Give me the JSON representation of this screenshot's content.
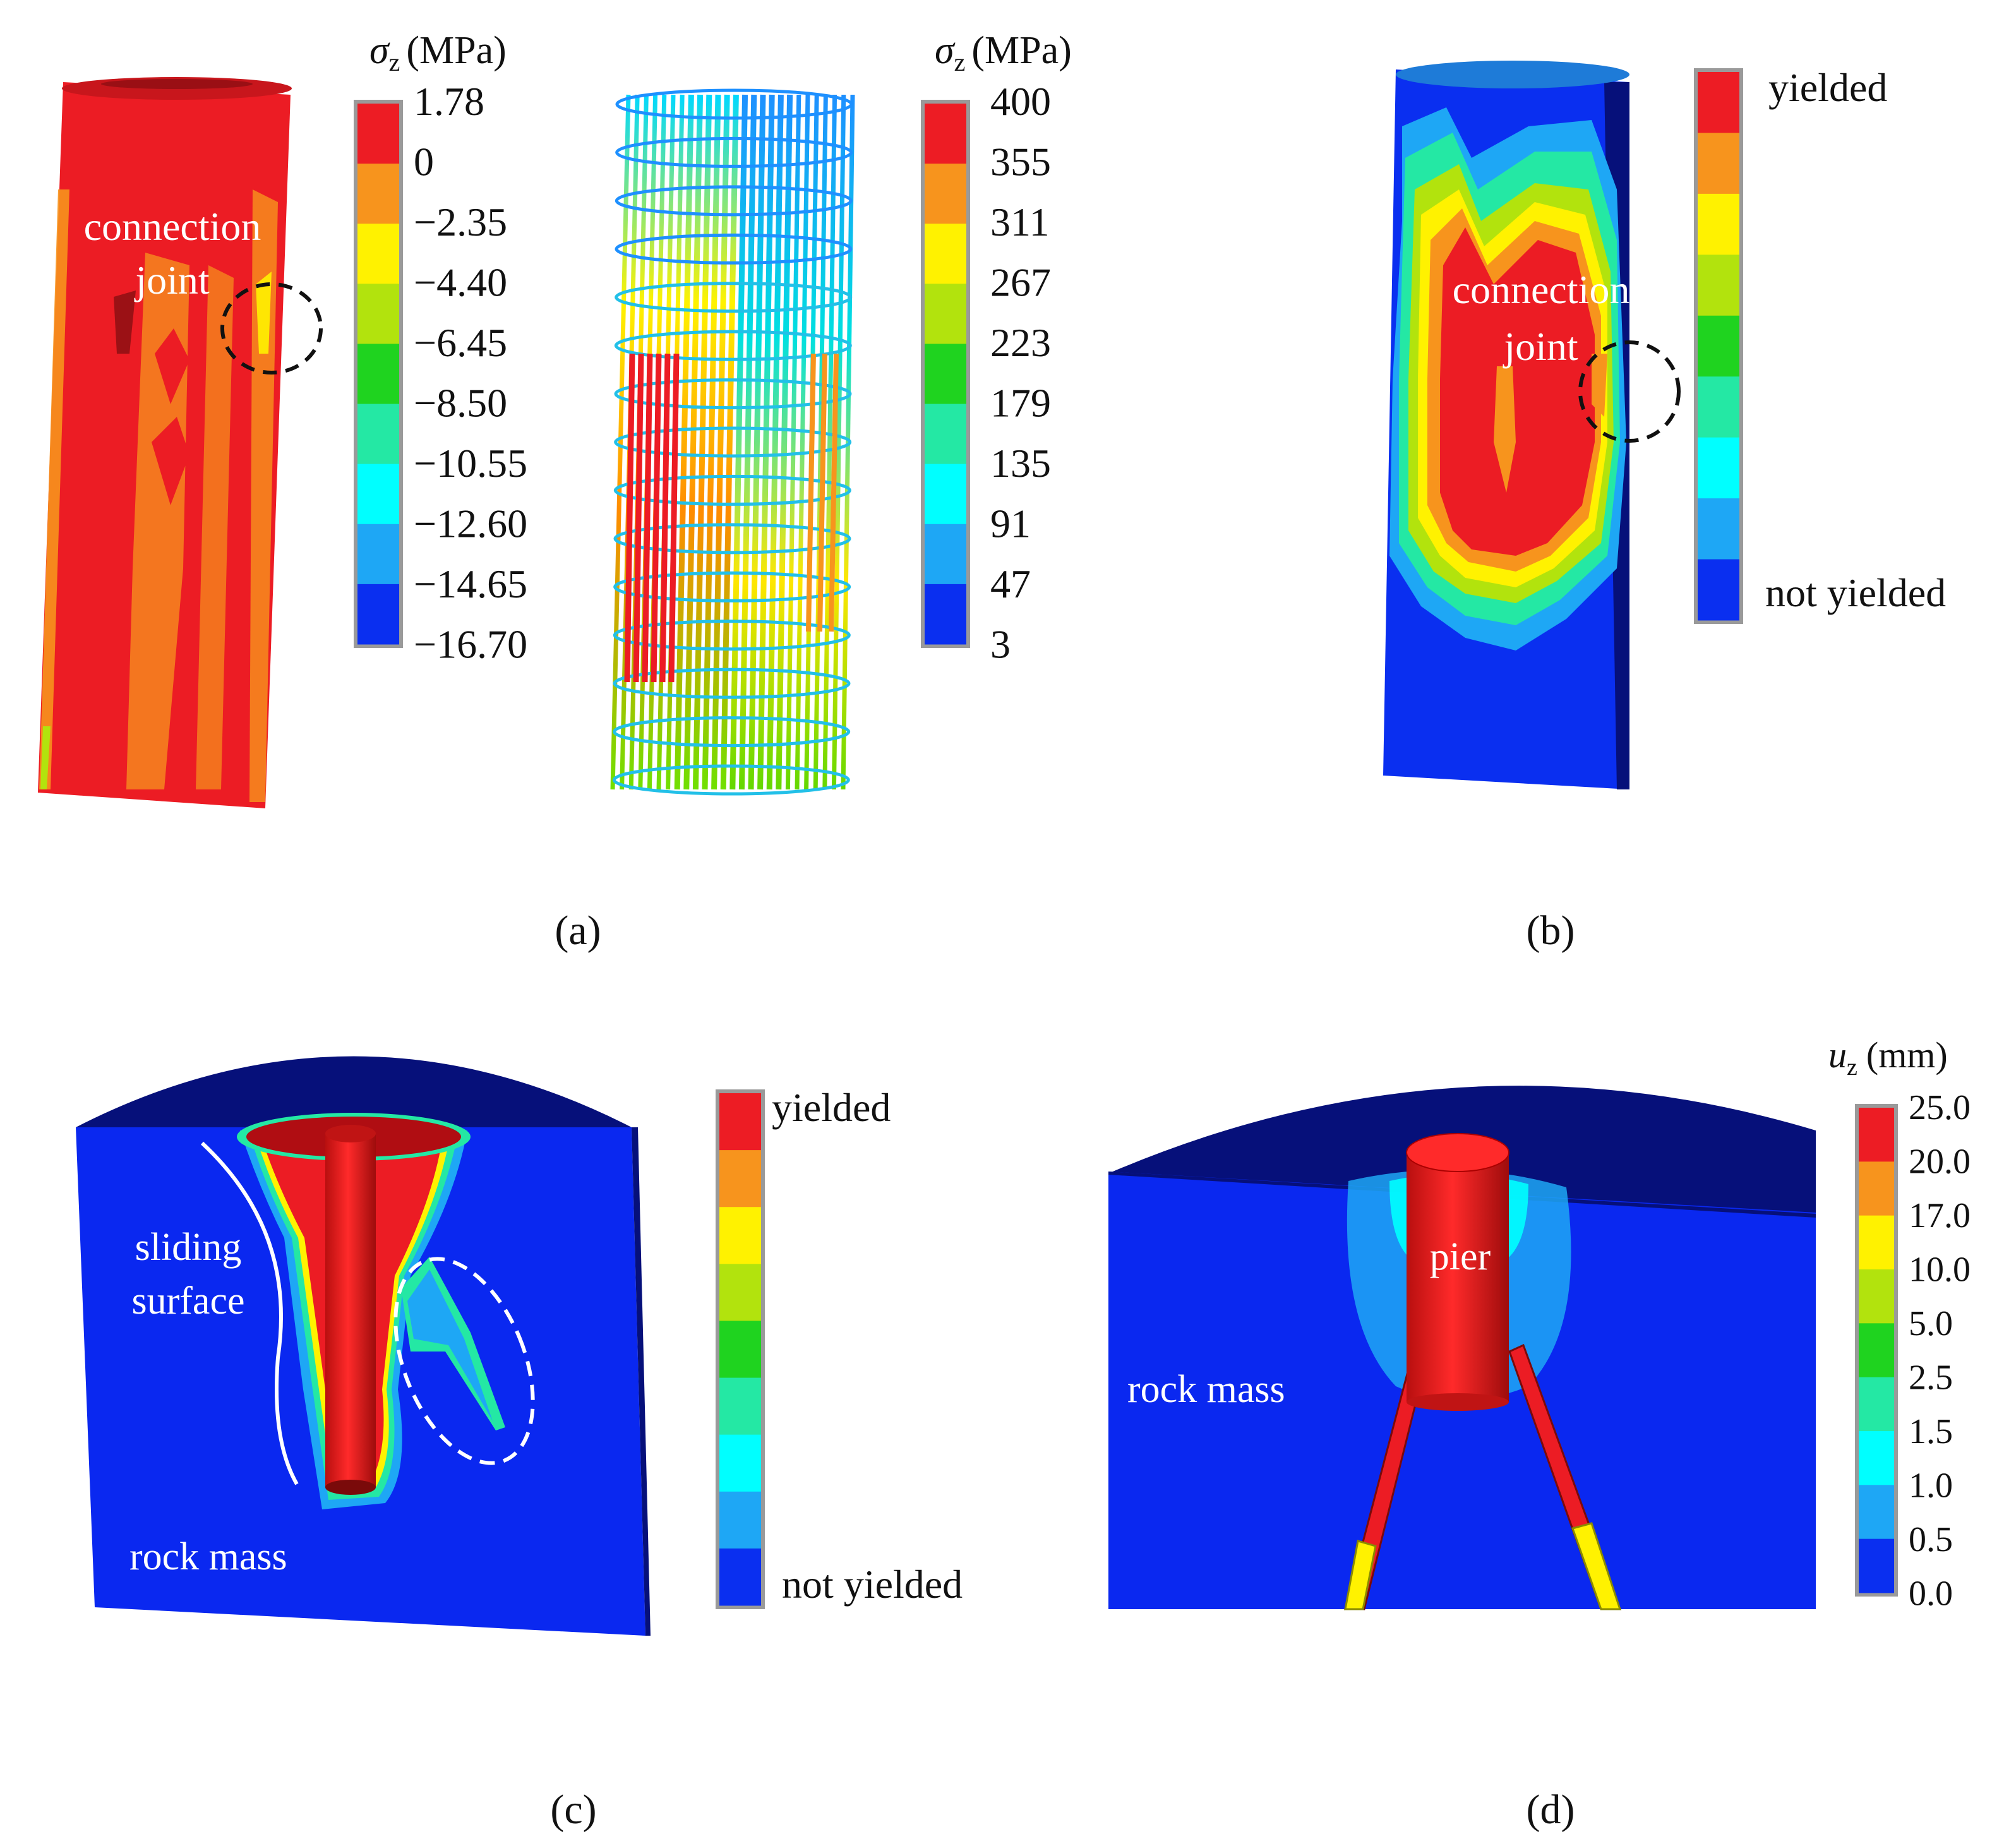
{
  "panels": {
    "a": {
      "caption": "(a)",
      "concrete": {
        "annotation_line1": "connection",
        "annotation_line2": "joint",
        "legend": {
          "symbol": "σ",
          "subscript": "z",
          "unit": "(MPa)",
          "ticks": [
            "1.78",
            "0",
            "−2.35",
            "−4.40",
            "−6.45",
            "−8.50",
            "−10.55",
            "−12.60",
            "−14.65",
            "−16.70"
          ]
        }
      },
      "steel": {
        "legend": {
          "symbol": "σ",
          "subscript": "z",
          "unit": "(MPa)",
          "ticks": [
            "400",
            "355",
            "311",
            "267",
            "223",
            "179",
            "135",
            "91",
            "47",
            "3"
          ]
        }
      }
    },
    "b": {
      "caption": "(b)",
      "annotation_line1": "connection",
      "annotation_line2": "joint",
      "legend": {
        "top": "yielded",
        "bottom": "not yielded"
      }
    },
    "c": {
      "caption": "(c)",
      "sliding_line1": "sliding",
      "sliding_line2": "surface",
      "rock_label": "rock mass",
      "legend": {
        "top": "yielded",
        "bottom": "not yielded"
      }
    },
    "d": {
      "caption": "(d)",
      "pier_label": "pier",
      "rock_label": "rock mass",
      "legend": {
        "symbol": "u",
        "subscript": "z",
        "unit": "(mm)",
        "ticks": [
          "25.0",
          "20.0",
          "17.0",
          "10.0",
          "5.0",
          "2.5",
          "1.5",
          "1.0",
          "0.5",
          "0.0"
        ]
      }
    }
  },
  "colors": {
    "scale": [
      "#ed1c24",
      "#f7941d",
      "#fff200",
      "#b2e30d",
      "#1fd31f",
      "#24e8a4",
      "#00ffff",
      "#1ea7f5",
      "#0a2ff0"
    ],
    "rock_blue": "#0a28f0",
    "rock_top": "#06107a",
    "red": "#ee1c1c"
  }
}
